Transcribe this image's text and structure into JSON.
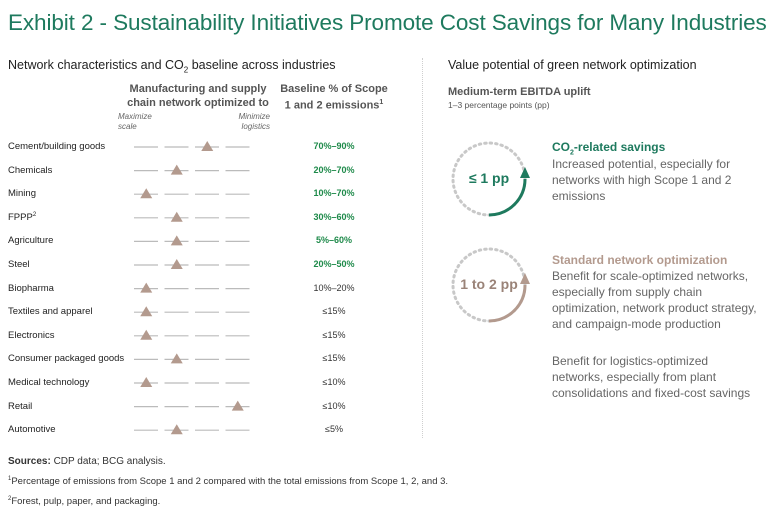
{
  "title": "Exhibit 2 - Sustainability Initiatives Promote Cost Savings for Many Industries",
  "left_header": {
    "text_before": "Network characteristics and CO",
    "sub": "2",
    "text_after": " baseline across industries"
  },
  "col_scale_header": "Manufacturing and supply chain network optimized to",
  "col_baseline_header": "Baseline % of Scope 1 and 2 emissions",
  "col_baseline_sup": "1",
  "axis_left": "Maximize scale",
  "axis_right": "Minimize logistics",
  "chart_data": {
    "type": "table",
    "scale_positions_note": "position 0 = Maximize scale, 4 = Minimize logistics",
    "rows": [
      {
        "industry": "Cement/building goods",
        "sup": "",
        "position": 2.5,
        "baseline": "70%–90%",
        "highlight": true
      },
      {
        "industry": "Chemicals",
        "sup": "",
        "position": 1.5,
        "baseline": "20%–70%",
        "highlight": true
      },
      {
        "industry": "Mining",
        "sup": "",
        "position": 0.5,
        "baseline": "10%–70%",
        "highlight": true
      },
      {
        "industry": "FPPP",
        "sup": "2",
        "position": 1.5,
        "baseline": "30%–60%",
        "highlight": true
      },
      {
        "industry": "Agriculture",
        "sup": "",
        "position": 1.5,
        "baseline": "5%–60%",
        "highlight": true
      },
      {
        "industry": "Steel",
        "sup": "",
        "position": 1.5,
        "baseline": "20%–50%",
        "highlight": true
      },
      {
        "industry": "Biopharma",
        "sup": "",
        "position": 0.5,
        "baseline": "10%–20%",
        "highlight": false
      },
      {
        "industry": "Textiles and apparel",
        "sup": "",
        "position": 0.5,
        "baseline": "≤15%",
        "highlight": false
      },
      {
        "industry": "Electronics",
        "sup": "",
        "position": 0.5,
        "baseline": "≤15%",
        "highlight": false
      },
      {
        "industry": "Consumer packaged goods",
        "sup": "",
        "position": 1.5,
        "baseline": "≤15%",
        "highlight": false
      },
      {
        "industry": "Medical technology",
        "sup": "",
        "position": 0.5,
        "baseline": "≤10%",
        "highlight": false
      },
      {
        "industry": "Retail",
        "sup": "",
        "position": 3.5,
        "baseline": "≤10%",
        "highlight": false
      },
      {
        "industry": "Automotive",
        "sup": "",
        "position": 1.5,
        "baseline": "≤5%",
        "highlight": false
      }
    ]
  },
  "right_header": "Value potential of green network optimization",
  "ebitda_title": "Medium-term EBITDA uplift",
  "ebitda_sub": "1–3 percentage points (pp)",
  "co2": {
    "circle_label": "≤ 1 pp",
    "title_before": "CO",
    "title_sub": "2",
    "title_after": "-related savings",
    "body": "Increased potential, especially for networks with high Scope 1 and 2 emissions",
    "color": "#1e7a5e"
  },
  "standard": {
    "circle_label": "1 to 2 pp",
    "title": "Standard network optimization",
    "body1": "Benefit for scale-optimized networks, especially from supply chain optimization, network product strategy, and campaign-mode production",
    "body2": "Benefit for logistics-optimized networks, especially from plant consolidations and fixed-cost savings",
    "color": "#b39a8e"
  },
  "sources_label": "Sources:",
  "sources_text": " CDP data; BCG analysis.",
  "footnotes": [
    {
      "sup": "1",
      "text": "Percentage of emissions from Scope 1 and 2 compared with the total emissions from Scope 1, 2, and 3."
    },
    {
      "sup": "2",
      "text": "Forest, pulp, paper, and packaging."
    }
  ],
  "colors": {
    "accent_green": "#1e7a5e",
    "marker": "#b39a8e",
    "line": "#bbbbbb"
  }
}
